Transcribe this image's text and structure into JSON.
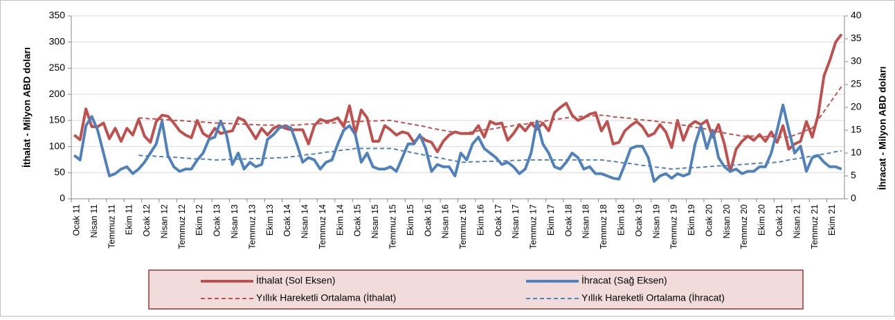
{
  "chart_data": {
    "type": "line",
    "y_label": "İthalat - Milyon ABD doları",
    "y2_label": "İhracat - Milyon ABD doları",
    "categories": [
      "Ocak 11",
      null,
      null,
      "Nisan 11",
      null,
      null,
      "Temmuz 11",
      null,
      null,
      "Ekim 11",
      null,
      null,
      "Ocak 12",
      null,
      null,
      "Nisan 12",
      null,
      null,
      "Temmuz 12",
      null,
      null,
      "Ekim 12",
      null,
      null,
      "Ocak 13",
      null,
      null,
      "Nisan 13",
      null,
      null,
      "Temmuz 13",
      null,
      null,
      "Ekim 13",
      null,
      null,
      "Ocak 14",
      null,
      null,
      "Nisan 14",
      null,
      null,
      "Temmuz 14",
      null,
      null,
      "Ekim 14",
      null,
      null,
      "Ocak 15",
      null,
      null,
      "Nisan 15",
      null,
      null,
      "Temmuz 15",
      null,
      null,
      "Ekim 15",
      null,
      null,
      "Ocak 16",
      null,
      null,
      "Nisan 16",
      null,
      null,
      "Temmuz 16",
      null,
      null,
      "Ekim 16",
      null,
      null,
      "Ocak 17",
      null,
      null,
      "Nisan 17",
      null,
      null,
      "Temmuz 17",
      null,
      null,
      "Ekim 17",
      null,
      null,
      "Ocak 18",
      null,
      null,
      "Nisan 18",
      null,
      null,
      "Temmuz 18",
      null,
      null,
      "Ekim 18",
      null,
      null,
      "Ocak 19",
      null,
      null,
      "Nisan 19",
      null,
      null,
      "Temmuz 19",
      null,
      null,
      "Ekim 19",
      null,
      null,
      "Ocak 20",
      null,
      null,
      "Nisan 20",
      null,
      null,
      "Temmuz 20",
      null,
      null,
      "Ekim 20",
      null,
      null,
      "Ocak 21",
      null,
      null,
      "Nisan 21",
      null,
      null,
      "Temmuz 21",
      null,
      null,
      "Ekim 21",
      null,
      null
    ],
    "series": [
      {
        "name": "İthalat (Sol Eksen)",
        "color": "#c0504d",
        "style": "solid",
        "axis": "y",
        "values": [
          122,
          113,
          172,
          138,
          138,
          145,
          115,
          135,
          110,
          135,
          122,
          152,
          120,
          108,
          148,
          160,
          158,
          145,
          130,
          122,
          117,
          150,
          125,
          118,
          135,
          125,
          128,
          130,
          155,
          150,
          133,
          115,
          135,
          122,
          135,
          140,
          135,
          132,
          132,
          132,
          105,
          140,
          152,
          148,
          150,
          155,
          138,
          178,
          125,
          170,
          155,
          110,
          110,
          140,
          132,
          122,
          128,
          125,
          108,
          120,
          112,
          108,
          90,
          110,
          122,
          128,
          125,
          125,
          125,
          140,
          118,
          148,
          143,
          145,
          112,
          125,
          142,
          130,
          145,
          133,
          145,
          130,
          165,
          175,
          183,
          160,
          150,
          155,
          162,
          165,
          130,
          148,
          105,
          108,
          130,
          140,
          148,
          138,
          120,
          125,
          142,
          128,
          98,
          150,
          112,
          140,
          148,
          142,
          150,
          118,
          142,
          105,
          52,
          95,
          110,
          120,
          112,
          123,
          110,
          128,
          108,
          140,
          95,
          105,
          110,
          148,
          118,
          160,
          235,
          265,
          300,
          315
        ]
      },
      {
        "name": "İhracat (Sağ Eksen)",
        "color": "#4f81bd",
        "style": "solid",
        "axis": "y2",
        "values": [
          9.5,
          8.5,
          16,
          18,
          15,
          10,
          5,
          5.5,
          6.5,
          7,
          5.5,
          6.5,
          8,
          10,
          12,
          17,
          9.5,
          7,
          6,
          6.5,
          6.5,
          8.5,
          10,
          13,
          13.5,
          17,
          14,
          7.5,
          10,
          6.5,
          8,
          7,
          7.5,
          13,
          14,
          15.5,
          16,
          15.5,
          12,
          8,
          9,
          8.5,
          6.5,
          8,
          8.5,
          12,
          15,
          16,
          14,
          8,
          10,
          7,
          6.5,
          6.5,
          7,
          6,
          9,
          12,
          12,
          14,
          11,
          6,
          7.5,
          7,
          7,
          5,
          10,
          8.5,
          12,
          13.5,
          11,
          10,
          9,
          7.5,
          8,
          7,
          5.5,
          6.5,
          10,
          17,
          12,
          10,
          7,
          6.5,
          8,
          10,
          9,
          6.5,
          7,
          5.5,
          5.5,
          5,
          4.5,
          4.3,
          7.5,
          11,
          11.5,
          11.5,
          9,
          3.8,
          5,
          5.5,
          4.5,
          5.5,
          5,
          5.5,
          12,
          16,
          11,
          15,
          9,
          7,
          6,
          6.5,
          5.5,
          6,
          6,
          7,
          7,
          10,
          15,
          20.5,
          15,
          10,
          11.5,
          6,
          9,
          9.5,
          8,
          7,
          7,
          6.5
        ]
      },
      {
        "name": "Yıllık Hareketli Ortalama (İthalat)",
        "color": "#c0504d",
        "style": "dashed",
        "axis": "y",
        "values": [
          null,
          null,
          null,
          null,
          null,
          null,
          null,
          null,
          null,
          null,
          null,
          155,
          154,
          153,
          153,
          152,
          151,
          150,
          150,
          149,
          148,
          147,
          147,
          146,
          145,
          145,
          144,
          144,
          143,
          143,
          142,
          142,
          141,
          141,
          141,
          140,
          140,
          141,
          141,
          142,
          143,
          143,
          144,
          145,
          145,
          146,
          147,
          147,
          148,
          148,
          149,
          149,
          149,
          150,
          150,
          148,
          146,
          144,
          142,
          140,
          138,
          135,
          133,
          131,
          129,
          127,
          125,
          127,
          128,
          130,
          132,
          133,
          135,
          137,
          138,
          140,
          142,
          143,
          145,
          147,
          148,
          150,
          152,
          153,
          155,
          156,
          157,
          158,
          158,
          159,
          160,
          159,
          157,
          156,
          155,
          154,
          152,
          151,
          150,
          149,
          147,
          146,
          145,
          143,
          141,
          139,
          137,
          135,
          133,
          130,
          128,
          126,
          124,
          122,
          120,
          120,
          120,
          119,
          119,
          119,
          118,
          118,
          118,
          122,
          126,
          131,
          135,
          151,
          167,
          183,
          199,
          215
        ]
      },
      {
        "name": "Yıllık Hareketli Ortalama (İhracat)",
        "color": "#4f81bd",
        "style": "dashed",
        "axis": "y2",
        "values": [
          null,
          null,
          null,
          null,
          null,
          null,
          null,
          null,
          null,
          null,
          null,
          9.5,
          9.4,
          9.4,
          9.3,
          9.2,
          9.1,
          9.1,
          9,
          8.9,
          8.8,
          8.7,
          8.7,
          8.6,
          8.5,
          8.5,
          8.6,
          8.6,
          8.7,
          8.7,
          8.8,
          8.8,
          8.8,
          8.9,
          8.9,
          9,
          9,
          9.2,
          9.3,
          9.5,
          9.7,
          9.8,
          10,
          10.2,
          10.3,
          10.5,
          10.7,
          10.8,
          11,
          11,
          11,
          11,
          11,
          11,
          11,
          10.8,
          10.5,
          10.3,
          10,
          9.8,
          9.5,
          9.3,
          9,
          8.8,
          8.5,
          8.3,
          8,
          8,
          8.1,
          8.1,
          8.2,
          8.2,
          8.2,
          8.3,
          8.3,
          8.4,
          8.4,
          8.5,
          8.5,
          8.5,
          8.5,
          8.5,
          8.5,
          8.5,
          8.5,
          8.5,
          8.5,
          8.5,
          8.5,
          8.5,
          8.5,
          8.3,
          8.2,
          8,
          7.8,
          7.7,
          7.5,
          7.3,
          7.2,
          7,
          6.8,
          6.7,
          6.5,
          6.6,
          6.7,
          6.8,
          6.8,
          6.9,
          7,
          7.1,
          7.2,
          7.2,
          7.3,
          7.4,
          7.5,
          7.6,
          7.7,
          7.8,
          7.8,
          7.9,
          8,
          8.2,
          8.5,
          8.7,
          8.9,
          9.1,
          9.4,
          9.6,
          9.8,
          10,
          10.3,
          10.5
        ]
      }
    ],
    "ylim": [
      0,
      350
    ],
    "yticks": [
      0,
      50,
      100,
      150,
      200,
      250,
      300,
      350
    ],
    "y2lim": [
      0,
      40
    ],
    "y2ticks": [
      0,
      5,
      10,
      15,
      20,
      25,
      30,
      35,
      40
    ],
    "grid": true,
    "legend": "bottom"
  }
}
